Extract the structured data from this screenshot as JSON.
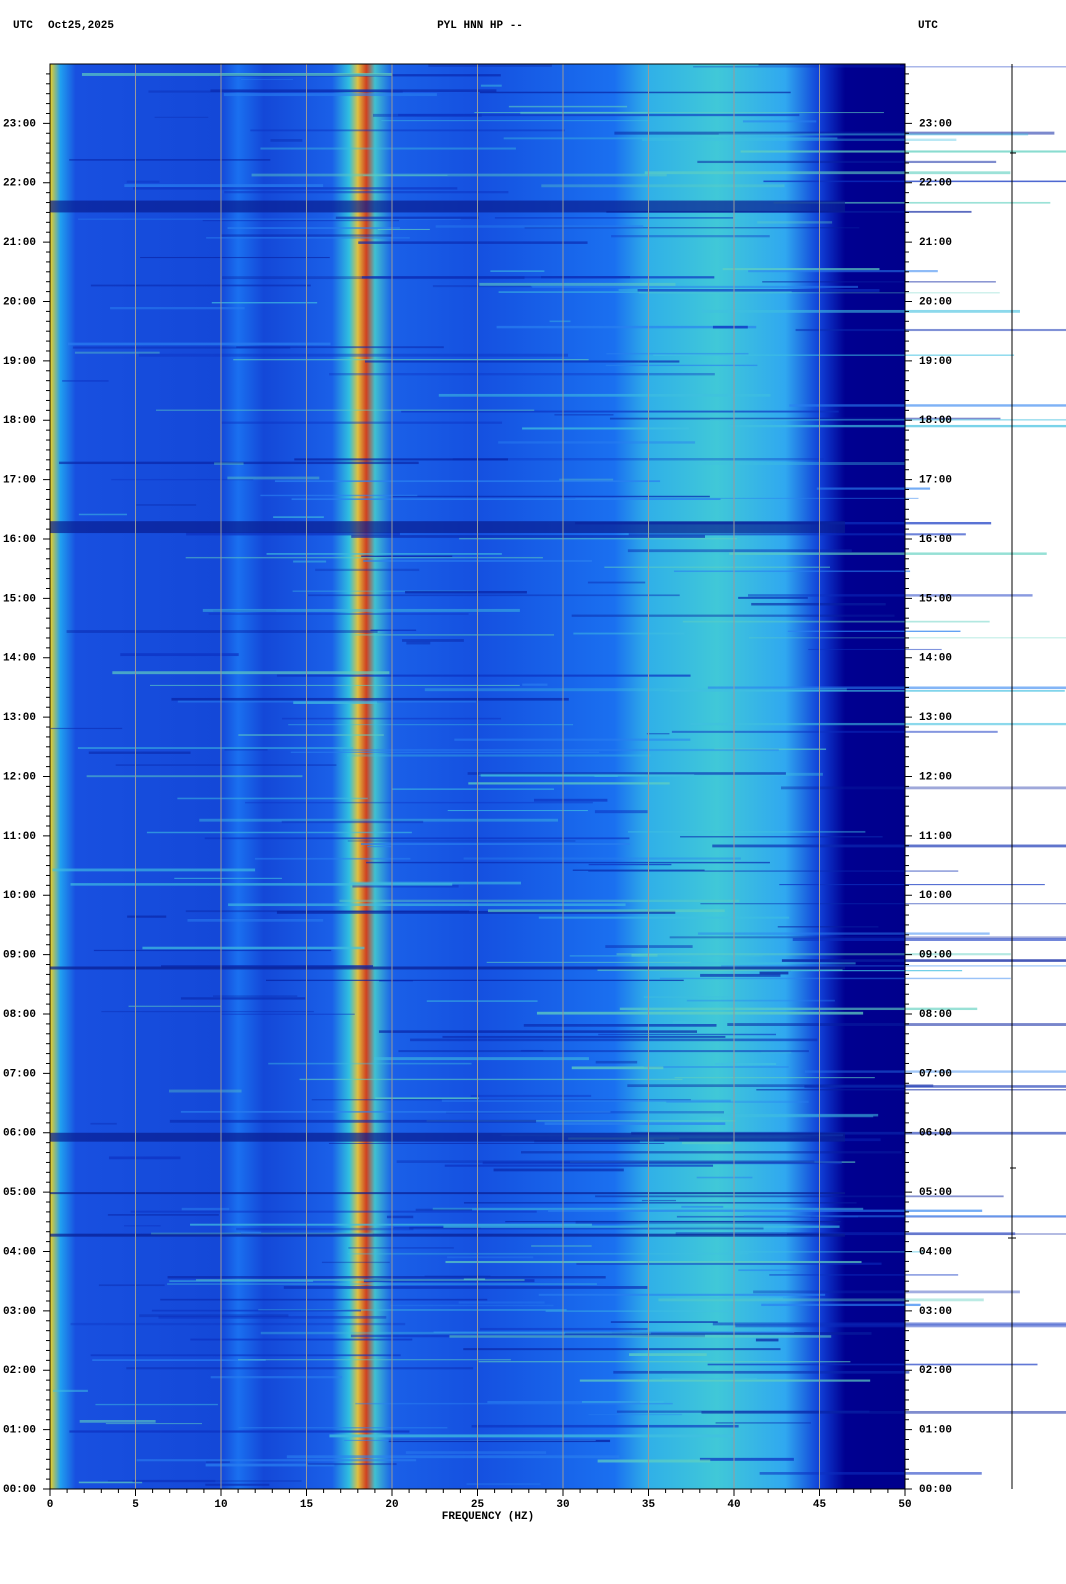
{
  "chart_data": {
    "type": "spectrogram",
    "time_zone": "UTC",
    "date": "Oct25,2025",
    "title": "PYL HNN HP --",
    "xlabel": "FREQUENCY (HZ)",
    "xlim": [
      0,
      50
    ],
    "xticks": [
      0,
      5,
      10,
      15,
      20,
      25,
      30,
      35,
      40,
      45,
      50
    ],
    "ylim": [
      0,
      24
    ],
    "yticks": [
      {
        "value": 0,
        "label": "00:00"
      },
      {
        "value": 1,
        "label": "01:00"
      },
      {
        "value": 2,
        "label": "02:00"
      },
      {
        "value": 3,
        "label": "03:00"
      },
      {
        "value": 4,
        "label": "04:00"
      },
      {
        "value": 5,
        "label": "05:00"
      },
      {
        "value": 6,
        "label": "06:00"
      },
      {
        "value": 7,
        "label": "07:00"
      },
      {
        "value": 8,
        "label": "08:00"
      },
      {
        "value": 9,
        "label": "09:00"
      },
      {
        "value": 10,
        "label": "10:00"
      },
      {
        "value": 11,
        "label": "11:00"
      },
      {
        "value": 12,
        "label": "12:00"
      },
      {
        "value": 13,
        "label": "13:00"
      },
      {
        "value": 14,
        "label": "14:00"
      },
      {
        "value": 15,
        "label": "15:00"
      },
      {
        "value": 16,
        "label": "16:00"
      },
      {
        "value": 17,
        "label": "17:00"
      },
      {
        "value": 18,
        "label": "18:00"
      },
      {
        "value": 19,
        "label": "19:00"
      },
      {
        "value": 20,
        "label": "20:00"
      },
      {
        "value": 21,
        "label": "21:00"
      },
      {
        "value": 22,
        "label": "22:00"
      },
      {
        "value": 23,
        "label": "23:00"
      }
    ],
    "grid": "x",
    "grid_color": "#9a9a9a"
  }
}
